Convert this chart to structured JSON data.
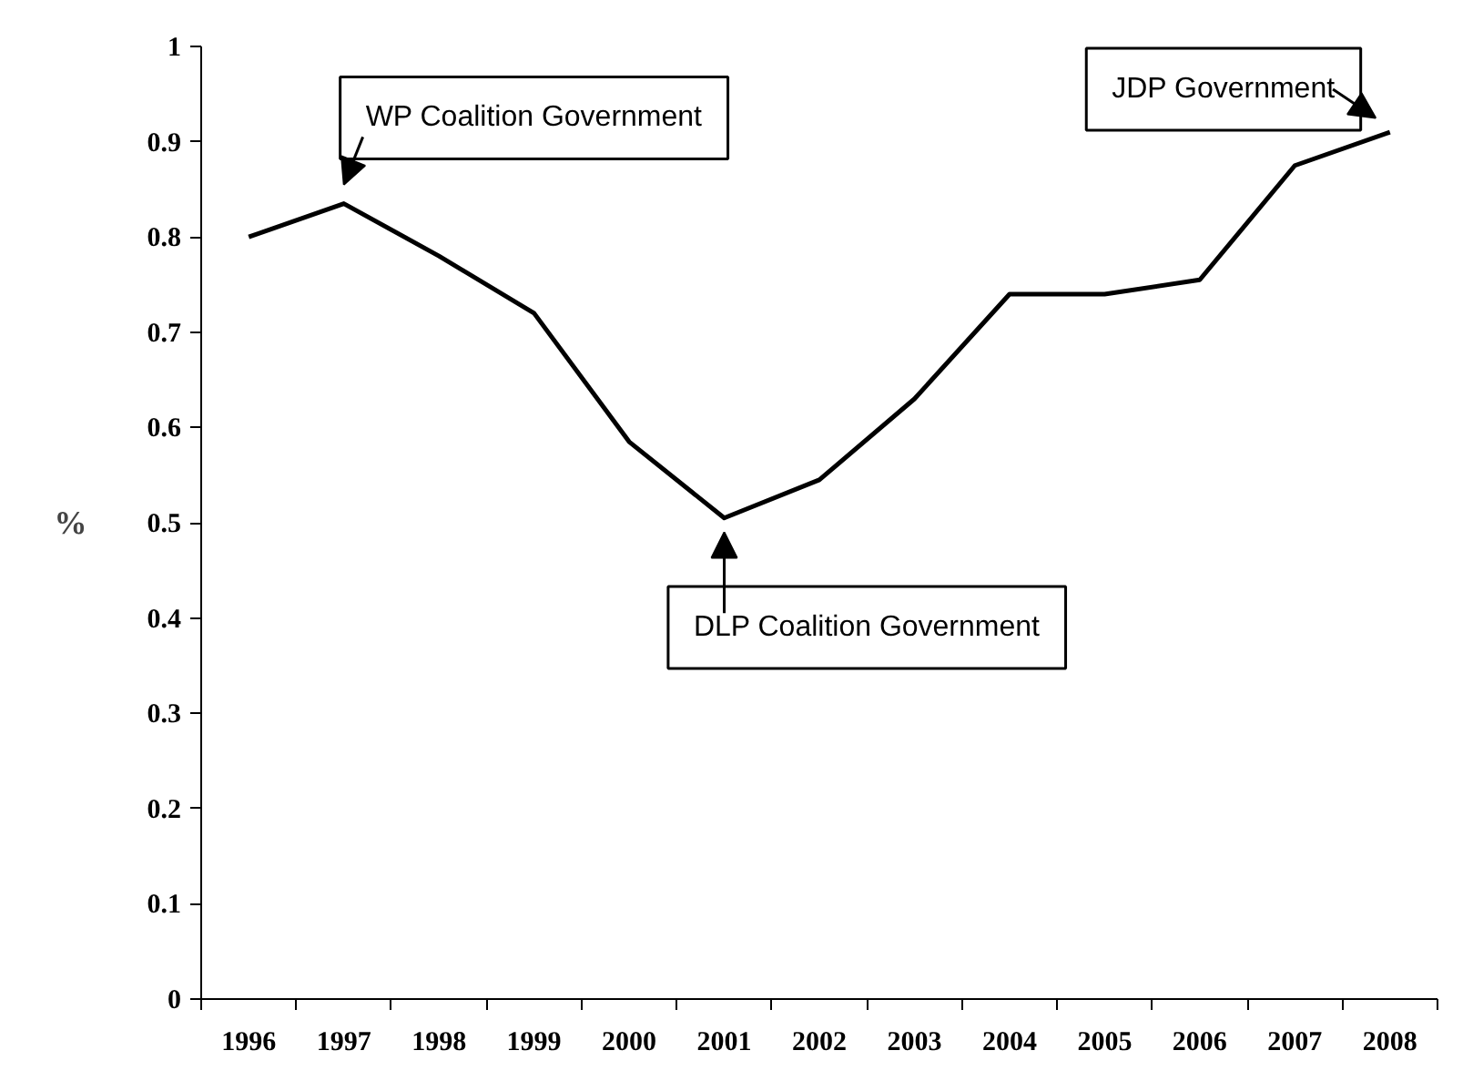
{
  "chart_data": {
    "type": "line",
    "ylabel": "%",
    "categories": [
      "1996",
      "1997",
      "1998",
      "1999",
      "2000",
      "2001",
      "2002",
      "2003",
      "2004",
      "2005",
      "2006",
      "2007",
      "2008"
    ],
    "values": [
      0.8,
      0.835,
      0.78,
      0.72,
      0.585,
      0.505,
      0.545,
      0.63,
      0.74,
      0.74,
      0.755,
      0.875,
      0.91
    ],
    "color": "#000000",
    "ylim": [
      0,
      1
    ],
    "yticks": [
      0,
      0.1,
      0.2,
      0.3,
      0.4,
      0.5,
      0.6,
      0.7,
      0.8,
      0.9,
      1
    ],
    "grid": false,
    "marker": "none",
    "line_style": "solid",
    "annotations": [
      {
        "text": "WP Coalition Government",
        "x": "1997",
        "y": 0.835
      },
      {
        "text": "DLP Coalition Government",
        "x": "2001",
        "y": 0.505
      },
      {
        "text": "JDP Government",
        "x": "2008",
        "y": 0.91
      }
    ]
  }
}
